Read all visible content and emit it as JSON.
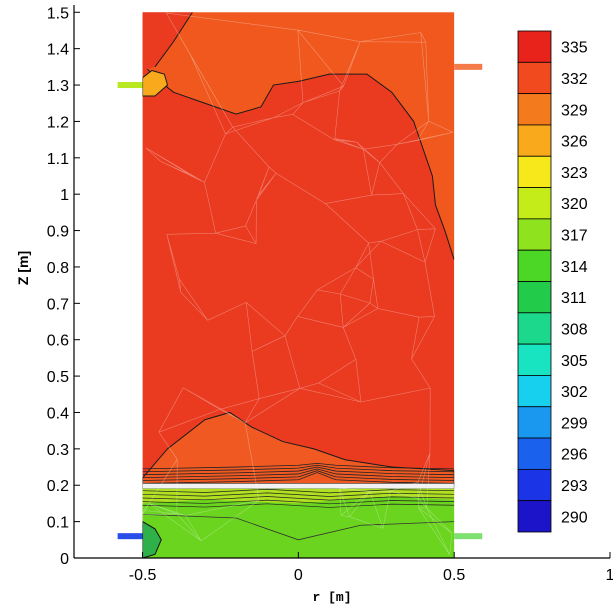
{
  "chart_data": {
    "type": "heatmap",
    "title": "",
    "xlabel": "r [m]",
    "ylabel": "Z [m]",
    "xlim": [
      -0.72,
      1.0
    ],
    "ylim": [
      0,
      1.52
    ],
    "x_ticks": [
      {
        "value": -0.5,
        "label": "-0.5"
      },
      {
        "value": 0,
        "label": "0"
      },
      {
        "value": 0.5,
        "label": "0.5"
      },
      {
        "value": 1.0,
        "label": "1"
      }
    ],
    "y_ticks": [
      {
        "value": 0,
        "label": "0"
      },
      {
        "value": 0.1,
        "label": "0.1"
      },
      {
        "value": 0.2,
        "label": "0.2"
      },
      {
        "value": 0.3,
        "label": "0.3"
      },
      {
        "value": 0.4,
        "label": "0.4"
      },
      {
        "value": 0.5,
        "label": "0.5"
      },
      {
        "value": 0.6,
        "label": "0.6"
      },
      {
        "value": 0.7,
        "label": "0.7"
      },
      {
        "value": 0.8,
        "label": "0.8"
      },
      {
        "value": 0.9,
        "label": "0.9"
      },
      {
        "value": 1.0,
        "label": "1"
      },
      {
        "value": 1.1,
        "label": "1.1"
      },
      {
        "value": 1.2,
        "label": "1.2"
      },
      {
        "value": 1.3,
        "label": "1.3"
      },
      {
        "value": 1.4,
        "label": "1.4"
      },
      {
        "value": 1.5,
        "label": "1.5"
      }
    ],
    "legend": {
      "position": "right",
      "levels": [
        {
          "label": "335",
          "color": "#e8231c"
        },
        {
          "label": "332",
          "color": "#f04a1e"
        },
        {
          "label": "329",
          "color": "#f47a1e"
        },
        {
          "label": "326",
          "color": "#f8aa1c"
        },
        {
          "label": "323",
          "color": "#f6e81a"
        },
        {
          "label": "320",
          "color": "#c4ec18"
        },
        {
          "label": "317",
          "color": "#8ee21e"
        },
        {
          "label": "314",
          "color": "#4cd626"
        },
        {
          "label": "311",
          "color": "#22cc4a"
        },
        {
          "label": "308",
          "color": "#1cd88c"
        },
        {
          "label": "305",
          "color": "#18e4c2"
        },
        {
          "label": "302",
          "color": "#16d0ee"
        },
        {
          "label": "299",
          "color": "#1a98f0"
        },
        {
          "label": "296",
          "color": "#1a62ee"
        },
        {
          "label": "293",
          "color": "#1a34e6"
        },
        {
          "label": "290",
          "color": "#1c14c8"
        }
      ]
    },
    "domain": {
      "r_range": [
        -0.5,
        0.5
      ],
      "z_range": [
        0,
        1.5
      ]
    },
    "regions": [
      {
        "name": "bulk",
        "value_level": "332-335",
        "color": "#ea3a20"
      },
      {
        "name": "upper-zone",
        "value_level": "329-332",
        "color": "#f0581e"
      },
      {
        "name": "mid-band",
        "value_level": "332",
        "color": "#f04a1e"
      },
      {
        "name": "lower-bed",
        "value_level": "314-317",
        "color": "#6ad41e"
      }
    ],
    "inlets": [
      {
        "name": "upper-left-inlet",
        "r": [
          -0.58,
          -0.5
        ],
        "z": 1.3,
        "color": "#b8e820"
      },
      {
        "name": "upper-right-inlet",
        "r": [
          0.5,
          0.59
        ],
        "z": 1.35,
        "color": "#f47a4a"
      },
      {
        "name": "lower-left-inlet",
        "r": [
          -0.58,
          -0.5
        ],
        "z": 0.06,
        "color": "#2a4ee8"
      },
      {
        "name": "lower-right-inlet",
        "r": [
          0.5,
          0.59
        ],
        "z": 0.06,
        "color": "#7ee070"
      }
    ],
    "grid": false
  }
}
